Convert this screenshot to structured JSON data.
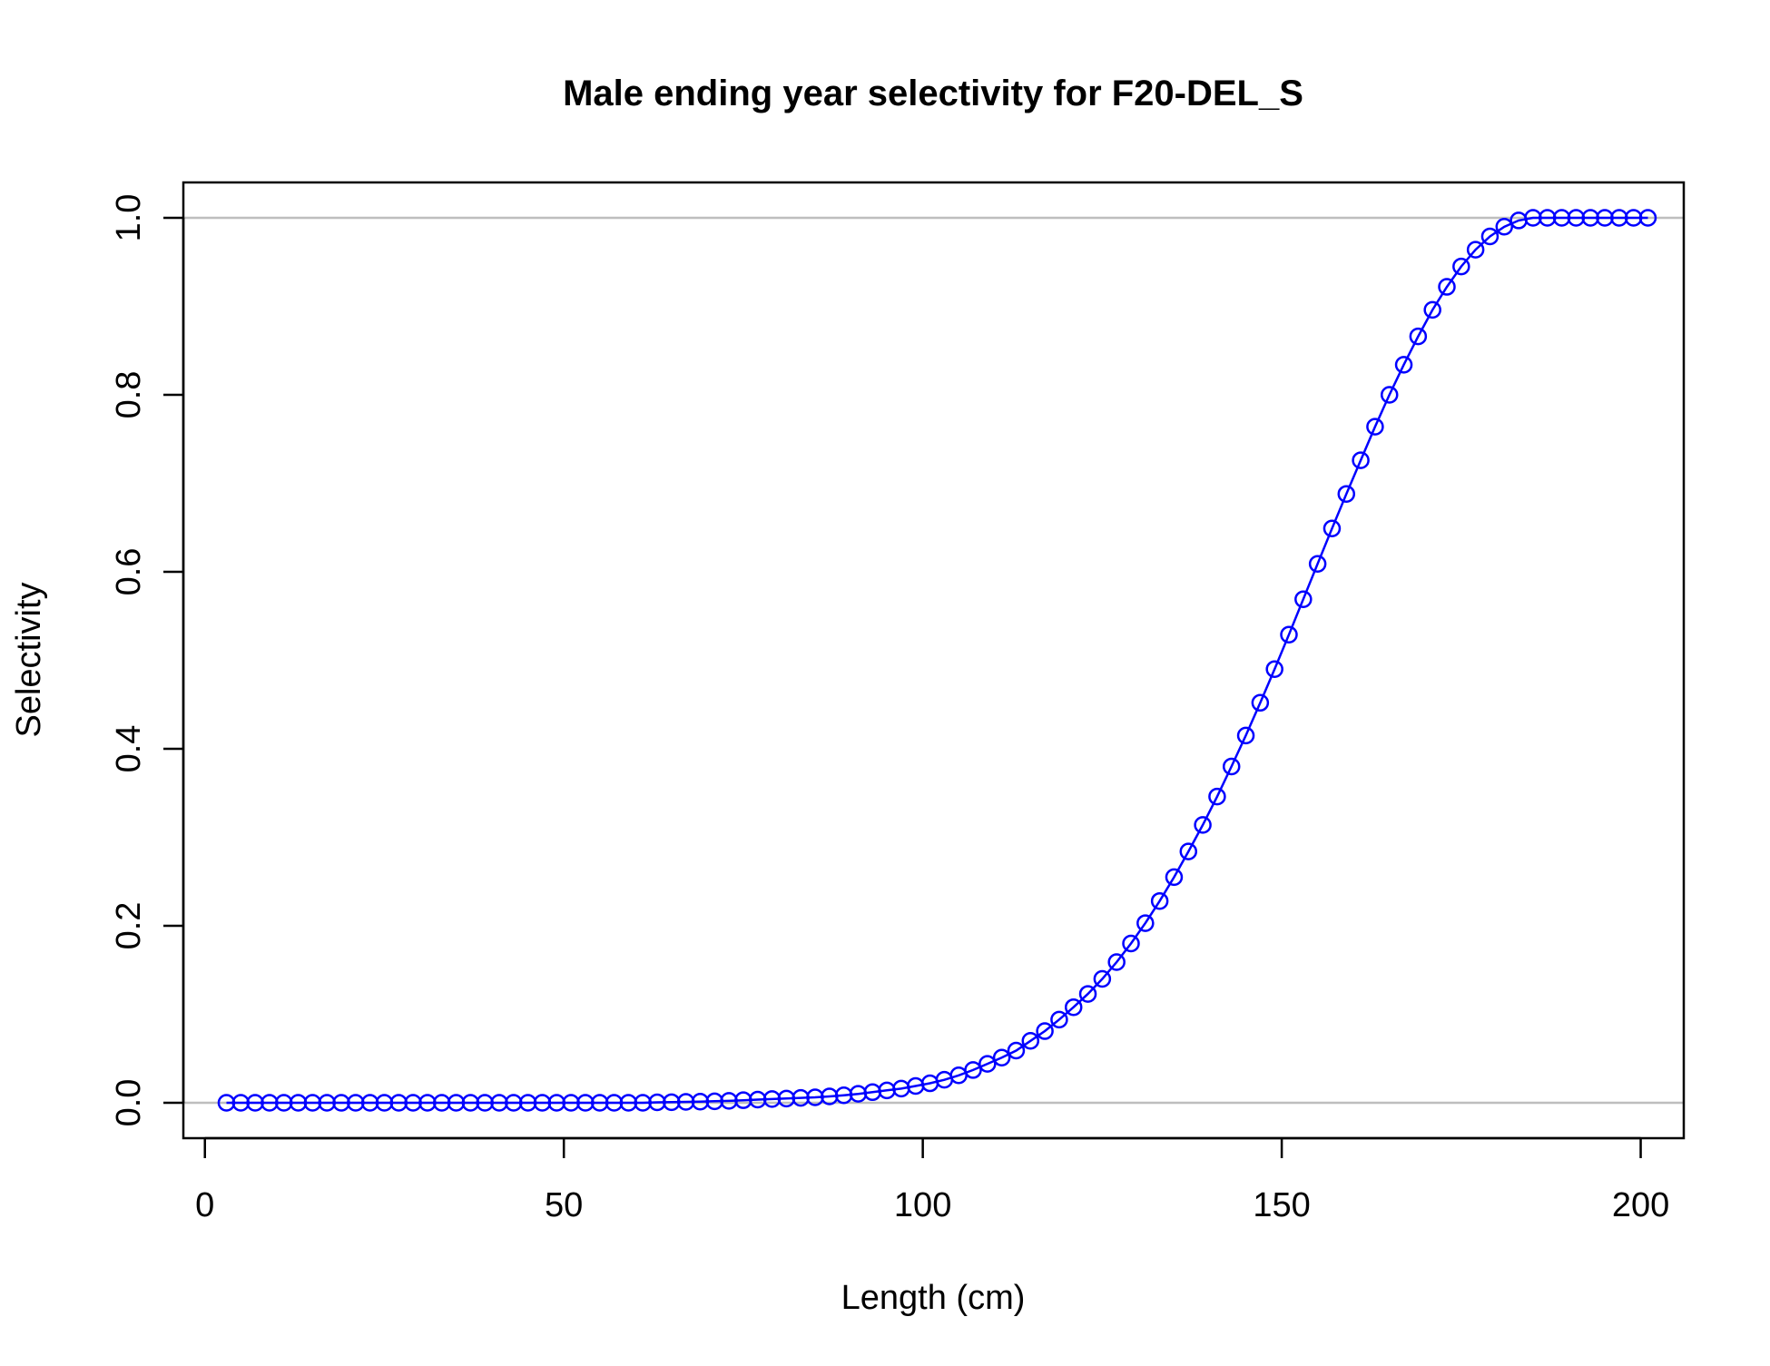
{
  "chart_data": {
    "type": "line",
    "title": "Male ending year selectivity for F20-DEL_S",
    "xlabel": "Length (cm)",
    "ylabel": "Selectivity",
    "xlim": [
      -3,
      206
    ],
    "ylim": [
      -0.04,
      1.04
    ],
    "xticks": [
      0,
      50,
      100,
      150,
      200
    ],
    "xtick_labels": [
      "0",
      "50",
      "100",
      "150",
      "200"
    ],
    "yticks": [
      0,
      0.2,
      0.4,
      0.6,
      0.8,
      1.0
    ],
    "ytick_labels": [
      "0.0",
      "0.2",
      "0.4",
      "0.6",
      "0.8",
      "1.0"
    ],
    "reference_lines": [
      0,
      1
    ],
    "colors": {
      "series": "#0000ff",
      "reference": "#bebebe",
      "axis": "#000000"
    },
    "grid": false,
    "x": [
      3,
      5,
      7,
      9,
      11,
      13,
      15,
      17,
      19,
      21,
      23,
      25,
      27,
      29,
      31,
      33,
      35,
      37,
      39,
      41,
      43,
      45,
      47,
      49,
      51,
      53,
      55,
      57,
      59,
      61,
      63,
      65,
      67,
      69,
      71,
      73,
      75,
      77,
      79,
      81,
      83,
      85,
      87,
      89,
      91,
      93,
      95,
      97,
      99,
      101,
      103,
      105,
      107,
      109,
      111,
      113,
      115,
      117,
      119,
      121,
      123,
      125,
      127,
      129,
      131,
      133,
      135,
      137,
      139,
      141,
      143,
      145,
      147,
      149,
      151,
      153,
      155,
      157,
      159,
      161,
      163,
      165,
      167,
      169,
      171,
      173,
      175,
      177,
      179,
      181,
      183,
      185,
      187,
      189,
      191,
      193,
      195,
      197,
      199,
      201
    ],
    "series": [
      {
        "values": [
          0,
          0,
          0,
          0,
          0,
          0,
          0,
          0,
          0,
          0,
          0,
          0,
          0,
          0,
          0,
          0,
          0,
          0,
          0,
          0,
          0,
          0,
          0,
          0,
          0,
          0,
          0,
          0,
          0,
          0,
          0.0005,
          0.0007,
          0.001,
          0.0013,
          0.0017,
          0.0022,
          0.0029,
          0.0036,
          0.0042,
          0.0048,
          0.0055,
          0.0062,
          0.0072,
          0.0085,
          0.0101,
          0.012,
          0.014,
          0.016,
          0.019,
          0.022,
          0.026,
          0.031,
          0.037,
          0.044,
          0.051,
          0.059,
          0.07,
          0.081,
          0.094,
          0.108,
          0.123,
          0.14,
          0.159,
          0.18,
          0.203,
          0.228,
          0.255,
          0.284,
          0.314,
          0.346,
          0.38,
          0.415,
          0.452,
          0.49,
          0.529,
          0.569,
          0.609,
          0.649,
          0.688,
          0.726,
          0.764,
          0.8,
          0.834,
          0.866,
          0.896,
          0.922,
          0.945,
          0.964,
          0.979,
          0.99,
          0.997,
          1.0,
          1.0,
          1.0,
          1.0,
          1.0,
          1.0,
          1.0,
          1.0,
          1.0
        ]
      }
    ]
  }
}
